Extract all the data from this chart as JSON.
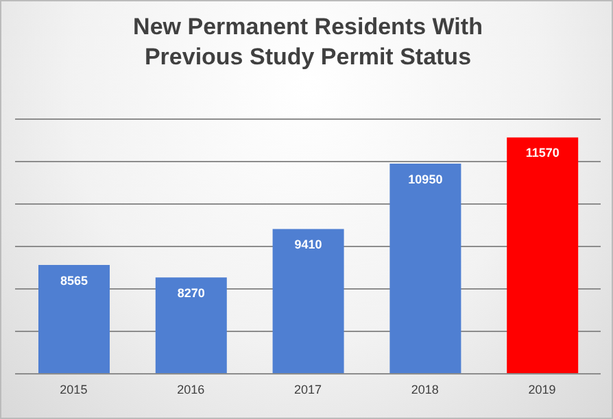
{
  "chart_data": {
    "type": "bar",
    "title": "New Permanent Residents With Previous Study Permit Status",
    "categories": [
      "2015",
      "2016",
      "2017",
      "2018",
      "2019"
    ],
    "values": [
      8565,
      8270,
      9410,
      10950,
      11570
    ],
    "colors": [
      "#4f7fd2",
      "#4f7fd2",
      "#4f7fd2",
      "#4f7fd2",
      "#ff0000"
    ],
    "ylim": [
      6000,
      12000
    ],
    "yticks": [
      {
        "value": 6000,
        "label": null
      },
      {
        "value": 7000,
        "label": null
      },
      {
        "value": 8000,
        "label": null
      },
      {
        "value": 9000,
        "label": null
      },
      {
        "value": 10000,
        "label": null
      },
      {
        "value": 11000,
        "label": null
      },
      {
        "value": 12000,
        "label": null
      }
    ],
    "tick_labels": "x",
    "grid": "y",
    "data_labels": true
  }
}
